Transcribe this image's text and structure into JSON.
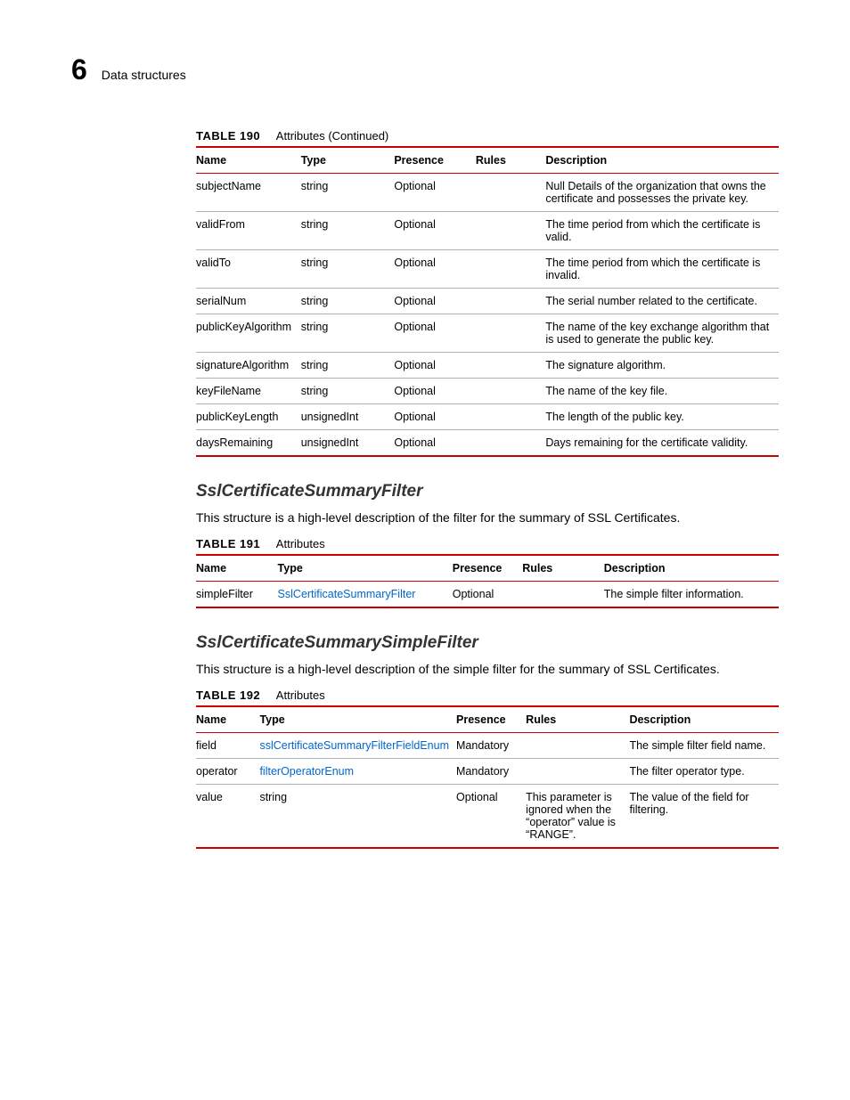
{
  "header": {
    "chapter_num": "6",
    "chapter_title": "Data structures"
  },
  "table190": {
    "label": "TABLE 190",
    "title": "Attributes  (Continued)",
    "columns": [
      "Name",
      "Type",
      "Presence",
      "Rules",
      "Description"
    ],
    "rows": [
      {
        "name": "subjectName",
        "type": "string",
        "presence": "Optional",
        "rules": "",
        "desc": "Null Details of the organization that owns the certificate and possesses the private key."
      },
      {
        "name": "validFrom",
        "type": "string",
        "presence": "Optional",
        "rules": "",
        "desc": "The time period from which the certificate is valid."
      },
      {
        "name": "validTo",
        "type": "string",
        "presence": "Optional",
        "rules": "",
        "desc": "The time period from which the certificate is invalid."
      },
      {
        "name": "serialNum",
        "type": "string",
        "presence": "Optional",
        "rules": "",
        "desc": "The serial number related to the certificate."
      },
      {
        "name": "publicKeyAlgorithm",
        "type": "string",
        "presence": "Optional",
        "rules": "",
        "desc": "The name of the key exchange algorithm that is used to generate the public key."
      },
      {
        "name": "signatureAlgorithm",
        "type": "string",
        "presence": "Optional",
        "rules": "",
        "desc": "The signature algorithm."
      },
      {
        "name": "keyFileName",
        "type": "string",
        "presence": "Optional",
        "rules": "",
        "desc": "The name of the key file."
      },
      {
        "name": "publicKeyLength",
        "type": "unsignedInt",
        "presence": "Optional",
        "rules": "",
        "desc": "The length of the public key."
      },
      {
        "name": "daysRemaining",
        "type": "unsignedInt",
        "presence": "Optional",
        "rules": "",
        "desc": "Days remaining for the certificate validity."
      }
    ]
  },
  "section1": {
    "title": "SslCertificateSummaryFilter",
    "desc": "This structure is a high-level description of the filter for the summary of SSL Certificates."
  },
  "table191": {
    "label": "TABLE 191",
    "title": "Attributes",
    "columns": [
      "Name",
      "Type",
      "Presence",
      "Rules",
      "Description"
    ],
    "rows": [
      {
        "name": "simpleFilter",
        "type": "SslCertificateSummaryFilter",
        "type_link": true,
        "presence": "Optional",
        "rules": "",
        "desc": "The simple filter information."
      }
    ]
  },
  "section2": {
    "title": "SslCertificateSummarySimpleFilter",
    "desc": "This structure is a high-level description of the simple filter for the summary of SSL Certificates."
  },
  "table192": {
    "label": "TABLE 192",
    "title": "Attributes",
    "columns": [
      "Name",
      "Type",
      "Presence",
      "Rules",
      "Description"
    ],
    "rows": [
      {
        "name": "field",
        "type": "sslCertificateSummaryFilterFieldEnum",
        "type_link": true,
        "presence": "Mandatory",
        "rules": "",
        "desc": "The simple filter field name."
      },
      {
        "name": "operator",
        "type": "filterOperatorEnum",
        "type_link": true,
        "presence": "Mandatory",
        "rules": "",
        "desc": "The filter operator type."
      },
      {
        "name": "value",
        "type": "string",
        "type_link": false,
        "presence": "Optional",
        "rules": "This parameter is ignored when the “operator” value is “RANGE”.",
        "desc": "The value of the field for filtering."
      }
    ]
  },
  "colors": {
    "accent": "#cc0000",
    "link": "#0066cc",
    "border": "#b0b0b0",
    "text": "#000000",
    "bg": "#ffffff"
  },
  "col_widths": {
    "t190": [
      "18%",
      "16%",
      "14%",
      "12%",
      "40%"
    ],
    "t191": [
      "14%",
      "30%",
      "12%",
      "14%",
      "30%"
    ],
    "t192": [
      "11%",
      "33%",
      "12%",
      "18%",
      "26%"
    ]
  }
}
